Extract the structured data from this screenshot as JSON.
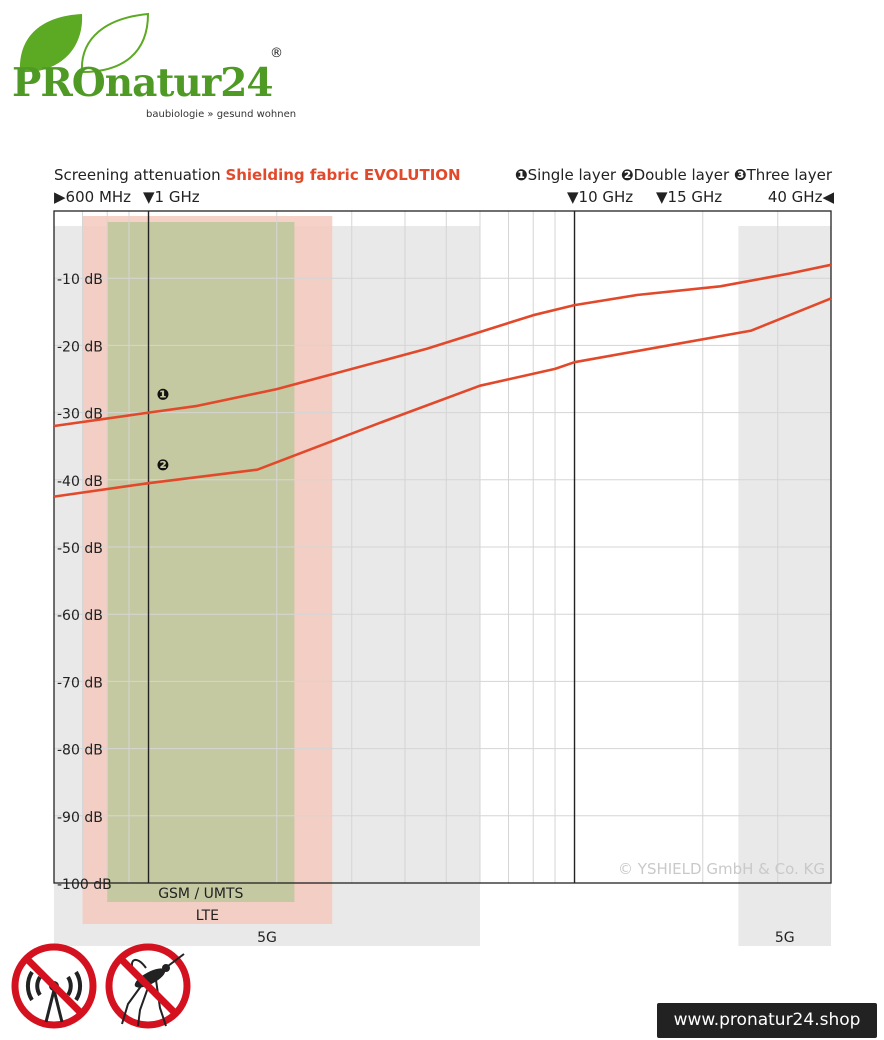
{
  "brand": {
    "name": "PROnatur24",
    "registered_mark": "®",
    "tagline": "baubiologie » gesund wohnen",
    "leaf_color": "#5ca923",
    "text_color": "#4f9a25"
  },
  "footer": {
    "shop_url": "www.pronatur24.shop"
  },
  "prohibition_icons": [
    "no-radiation-icon",
    "no-mosquito-icon"
  ],
  "chart_data": {
    "type": "line",
    "title_prefix": "Screening attenuation ",
    "title_highlight": "Shielding fabric EVOLUTION",
    "legend": [
      {
        "marker": "❶",
        "label": "Single layer"
      },
      {
        "marker": "❷",
        "label": "Double layer"
      },
      {
        "marker": "❸",
        "label": "Three layer"
      }
    ],
    "frequency_markers": [
      {
        "label": "600 MHz",
        "arrow": "▶"
      },
      {
        "label": "1 GHz",
        "arrow": "▼"
      },
      {
        "label": "10 GHz",
        "arrow": "▼"
      },
      {
        "label": "15 GHz",
        "arrow": "▼"
      },
      {
        "label": "40 GHz",
        "arrow": "◀"
      }
    ],
    "y_ticks": [
      "-10 dB",
      "-20 dB",
      "-30 dB",
      "-40 dB",
      "-50 dB",
      "-60 dB",
      "-70 dB",
      "-80 dB",
      "-90 dB",
      "-100 dB"
    ],
    "ylim": [
      -100,
      0
    ],
    "xlim_ghz": [
      0.6,
      40
    ],
    "x_scale": "log",
    "grid": true,
    "line_color": "#e2492b",
    "series": [
      {
        "marker": "❶",
        "x_ghz": [
          0.6,
          1.0,
          1.3,
          2.0,
          4.5,
          8.0,
          10.0,
          14.0,
          22.0,
          32.0,
          40.0
        ],
        "y_db": [
          -32,
          -30,
          -29,
          -26.5,
          -20.5,
          -15.5,
          -14,
          -12.5,
          -11.2,
          -9.3,
          -8
        ]
      },
      {
        "marker": "❷",
        "x_ghz": [
          0.6,
          1.0,
          1.8,
          3.5,
          6.0,
          9.0,
          10.0,
          15.0,
          26.0,
          40.0
        ],
        "y_db": [
          -42.5,
          -40.5,
          -38.5,
          -31.5,
          -26,
          -23.5,
          -22.5,
          -20.5,
          -17.8,
          -13
        ]
      }
    ],
    "bands": [
      {
        "label": "GSM / UMTS",
        "from_ghz": 0.8,
        "to_ghz": 2.2,
        "color": "#c5c9a1"
      },
      {
        "label": "LTE",
        "from_ghz": 0.7,
        "to_ghz": 2.7,
        "color": "#f3c9bd"
      },
      {
        "label": "5G",
        "from_ghz": 0.6,
        "to_ghz": 6.0,
        "color": "#e2e2e2"
      },
      {
        "label": "5G",
        "from_ghz": 24.25,
        "to_ghz": 40.0,
        "color": "#e2e2e2"
      }
    ],
    "copyright": "© YSHIELD GmbH & Co. KG"
  }
}
